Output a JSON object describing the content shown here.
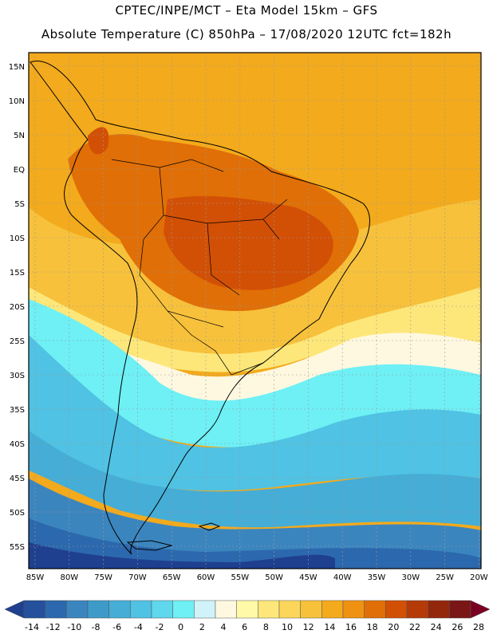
{
  "title_line1": "CPTEC/INPE/MCT –  Eta Model 15km – GFS",
  "title_line2": "Absolute Temperature (C) 850hPa – 17/08/2020 12UTC fct=182h",
  "lat_labels": [
    "15N",
    "10N",
    "5N",
    "EQ",
    "5S",
    "10S",
    "15S",
    "20S",
    "25S",
    "30S",
    "35S",
    "40S",
    "45S",
    "50S",
    "55S"
  ],
  "lon_labels": [
    "85W",
    "80W",
    "75W",
    "70W",
    "65W",
    "60W",
    "55W",
    "50W",
    "45W",
    "40W",
    "35W",
    "30W",
    "25W",
    "20W"
  ],
  "colorbar": {
    "labels": [
      "-14",
      "-12",
      "-10",
      "-8",
      "-6",
      "-4",
      "-2",
      "0",
      "2",
      "4",
      "6",
      "8",
      "10",
      "12",
      "14",
      "16",
      "18",
      "20",
      "22",
      "24",
      "26",
      "28"
    ],
    "colors": [
      "#1f3f8f",
      "#24509c",
      "#2c68ad",
      "#3b85bf",
      "#3e9bc9",
      "#45add6",
      "#50c2e3",
      "#5fd7ec",
      "#6ef0f5",
      "#cff3f8",
      "#fff8e0",
      "#fff9a8",
      "#fde77a",
      "#fbd65a",
      "#f7c13b",
      "#f3aa1c",
      "#ef9212",
      "#e06f07",
      "#d25005",
      "#b53a08",
      "#93270c",
      "#7a1616",
      "#7a0022"
    ]
  },
  "map_colors": {
    "ocean_warm": "#f3aa1c",
    "land_hot": "#e06f07",
    "land_hotter": "#d25005",
    "subtropic": "#f7c13b",
    "yellow": "#fde77a",
    "pale": "#fff8e0",
    "cyan_light": "#6ef0f5",
    "cyan": "#50c2e3",
    "blue1": "#45add6",
    "blue2": "#3b85bf",
    "blue3": "#2c68ad",
    "blue4": "#1f3f8f"
  }
}
